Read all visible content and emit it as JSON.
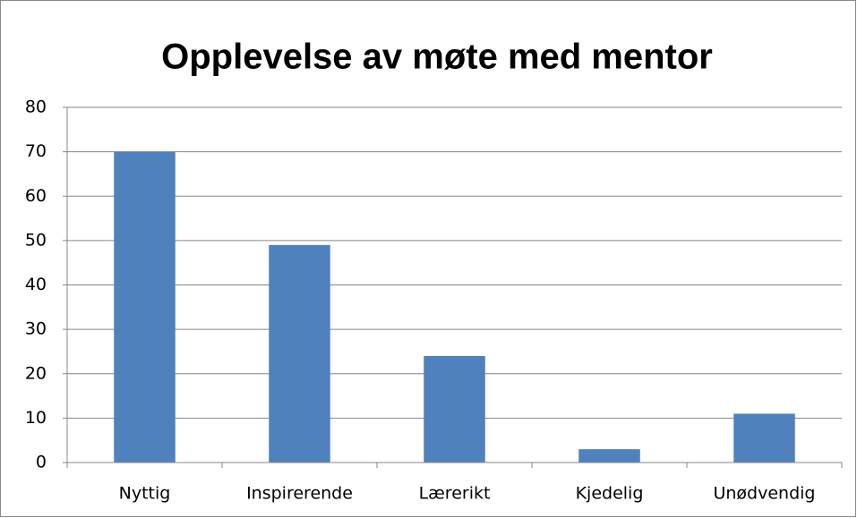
{
  "chart_data": {
    "type": "bar",
    "title": "Opplevelse av møte med mentor",
    "categories": [
      "Nyttig",
      "Inspirerende",
      "Lærerikt",
      "Kjedelig",
      "Unødvendig"
    ],
    "values": [
      70,
      49,
      24,
      3,
      11
    ],
    "color": "#4f81bd",
    "ylim": [
      0,
      80
    ],
    "yticks": [
      0,
      10,
      20,
      30,
      40,
      50,
      60,
      70,
      80
    ],
    "grid": true
  }
}
